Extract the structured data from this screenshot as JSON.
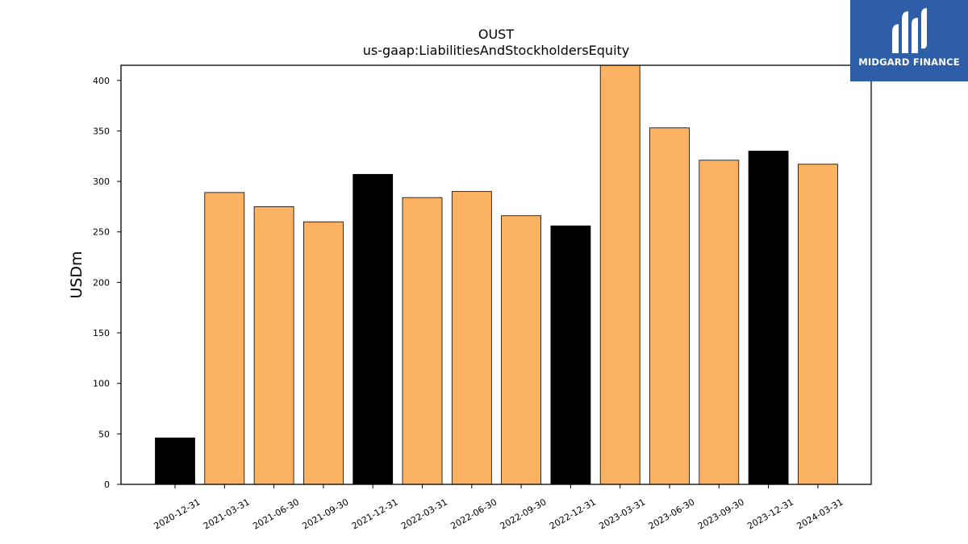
{
  "chart_data": {
    "type": "bar",
    "title": "OUST",
    "subtitle": "us-gaap:LiabilitiesAndStockholdersEquity",
    "xlabel": "",
    "ylabel": "USDm",
    "ylim": [
      0,
      415
    ],
    "yticks": [
      0,
      50,
      100,
      150,
      200,
      250,
      300,
      350,
      400
    ],
    "grid": false,
    "categories": [
      "2020-12-31",
      "2021-03-31",
      "2021-06-30",
      "2021-09-30",
      "2021-12-31",
      "2022-03-31",
      "2022-06-30",
      "2022-09-30",
      "2022-12-31",
      "2023-03-31",
      "2023-06-30",
      "2023-09-30",
      "2023-12-31",
      "2024-03-31"
    ],
    "values": [
      46,
      289,
      275,
      260,
      307,
      284,
      290,
      266,
      256,
      416,
      353,
      321,
      330,
      317
    ],
    "bar_colors": [
      "#000000",
      "#fbb262",
      "#fbb262",
      "#fbb262",
      "#000000",
      "#fbb262",
      "#fbb262",
      "#fbb262",
      "#000000",
      "#fbb262",
      "#fbb262",
      "#fbb262",
      "#000000",
      "#fbb262"
    ]
  },
  "logo": {
    "text": "MIDGARD FINANCE",
    "background": "#2f5ea8"
  }
}
